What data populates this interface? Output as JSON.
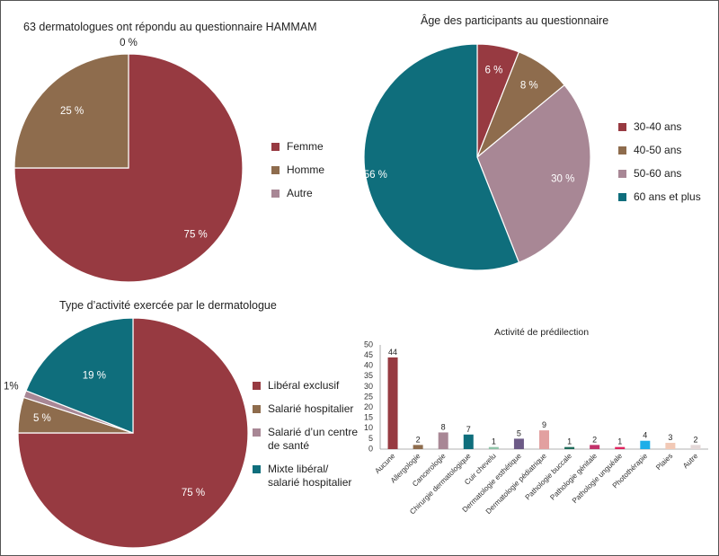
{
  "chart_data": [
    {
      "type": "pie",
      "title": "63 dermatologues ont répondu au questionnaire HAMMAM",
      "slices": [
        {
          "label": "Femme",
          "value": 75,
          "display": "75 %",
          "color": "#973a41"
        },
        {
          "label": "Homme",
          "value": 25,
          "display": "25 %",
          "color": "#8e6c4d"
        },
        {
          "label": "Autre",
          "value": 0,
          "display": "0 %",
          "color": "#a88795"
        }
      ],
      "legend_position": "right"
    },
    {
      "type": "pie",
      "title": "Âge des participants au questionnaire",
      "slices": [
        {
          "label": "30-40 ans",
          "value": 6,
          "display": "6 %",
          "color": "#973a41"
        },
        {
          "label": "40-50 ans",
          "value": 8,
          "display": "8 %",
          "color": "#8e6c4d"
        },
        {
          "label": "50-60 ans",
          "value": 30,
          "display": "30 %",
          "color": "#a88795"
        },
        {
          "label": "60 ans et plus",
          "value": 56,
          "display": "56 %",
          "color": "#0f6e7c"
        }
      ],
      "legend_position": "right"
    },
    {
      "type": "pie",
      "title": "Type d’activité exercée par le dermatologue",
      "slices": [
        {
          "label": "Libéral exclusif",
          "value": 75,
          "display": "75 %",
          "color": "#973a41"
        },
        {
          "label": "Salarié hospitalier",
          "value": 5,
          "display": "5 %",
          "color": "#8e6c4d"
        },
        {
          "label": "Salarié d’un centre de santé",
          "value": 1,
          "display": "1%",
          "color": "#a88795"
        },
        {
          "label": "Mixte libéral/ salarié hospitalier",
          "value": 19,
          "display": "19 %",
          "color": "#0f6e7c"
        }
      ],
      "legend_position": "right"
    },
    {
      "type": "bar",
      "title": "Activité de prédilection",
      "categories": [
        "Aucune",
        "Allergologie",
        "Cancerologie",
        "Chirurgie dermatologique",
        "Cuir chevelu",
        "Dermatologie esthétique",
        "Dermatologie pédiatrique",
        "Pathologie buccale",
        "Pathologie génitale",
        "Pathologie unguéale",
        "Photothérapie",
        "Plaies",
        "Autre"
      ],
      "values": [
        44,
        2,
        8,
        7,
        1,
        5,
        9,
        1,
        2,
        1,
        4,
        3,
        2
      ],
      "colors": [
        "#973a41",
        "#8e6c4d",
        "#a88795",
        "#0f6e7c",
        "#8fc3a8",
        "#6c5a86",
        "#e2a0a0",
        "#1e6b5a",
        "#c2326a",
        "#e0245e",
        "#1eaee8",
        "#f2c9b6",
        "#e4d8d8"
      ],
      "ylim": [
        0,
        50
      ],
      "yticks": [
        0,
        5,
        10,
        15,
        20,
        25,
        30,
        35,
        40,
        45,
        50
      ],
      "xlabel": "",
      "ylabel": "",
      "grid": false
    }
  ]
}
